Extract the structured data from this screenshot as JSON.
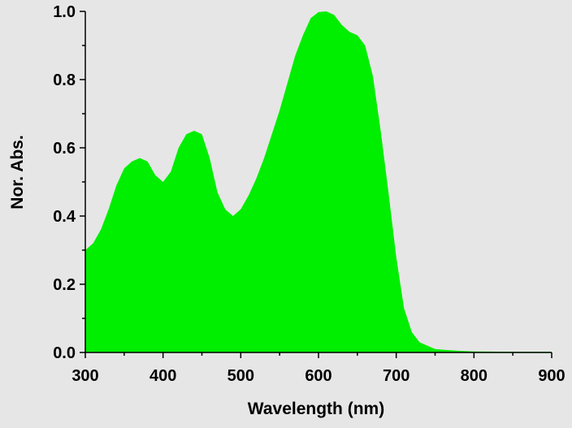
{
  "chart_data": {
    "type": "area",
    "title": "",
    "xlabel": "Wavelength (nm)",
    "ylabel": "Nor. Abs.",
    "xlim": [
      300,
      900
    ],
    "ylim": [
      0,
      1.0
    ],
    "x_ticks": [
      "300",
      "400",
      "500",
      "600",
      "700",
      "800",
      "900"
    ],
    "y_ticks": [
      "0.0",
      "0.2",
      "0.4",
      "0.6",
      "0.8",
      "1.0"
    ],
    "x_tick_values": [
      300,
      400,
      500,
      600,
      700,
      800,
      900
    ],
    "y_tick_values": [
      0.0,
      0.2,
      0.4,
      0.6,
      0.8,
      1.0
    ],
    "fill_color": "#00ee00",
    "background_color": "#e6e6e6",
    "series": [
      {
        "name": "Nor. Abs.",
        "x": [
          300,
          310,
          320,
          330,
          340,
          350,
          360,
          370,
          380,
          390,
          400,
          410,
          420,
          430,
          440,
          450,
          460,
          470,
          480,
          490,
          500,
          510,
          520,
          530,
          540,
          550,
          560,
          570,
          580,
          590,
          600,
          610,
          620,
          630,
          640,
          650,
          660,
          670,
          680,
          690,
          700,
          710,
          720,
          730,
          740,
          750,
          760,
          780,
          800,
          850,
          900
        ],
        "values": [
          0.3,
          0.32,
          0.36,
          0.42,
          0.49,
          0.54,
          0.56,
          0.57,
          0.56,
          0.52,
          0.5,
          0.53,
          0.6,
          0.64,
          0.65,
          0.64,
          0.57,
          0.47,
          0.42,
          0.4,
          0.42,
          0.46,
          0.51,
          0.57,
          0.64,
          0.71,
          0.79,
          0.87,
          0.93,
          0.98,
          0.998,
          1.0,
          0.99,
          0.96,
          0.94,
          0.93,
          0.9,
          0.81,
          0.65,
          0.47,
          0.28,
          0.13,
          0.06,
          0.03,
          0.02,
          0.01,
          0.008,
          0.005,
          0.003,
          0.002,
          0.002
        ]
      }
    ]
  }
}
